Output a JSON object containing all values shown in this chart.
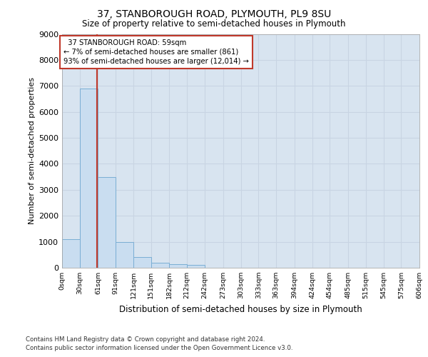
{
  "title": "37, STANBOROUGH ROAD, PLYMOUTH, PL9 8SU",
  "subtitle": "Size of property relative to semi-detached houses in Plymouth",
  "xlabel": "Distribution of semi-detached houses by size in Plymouth",
  "ylabel": "Number of semi-detached properties",
  "property_size": 59,
  "property_label": "37 STANBOROUGH ROAD: 59sqm",
  "pct_smaller": 7,
  "pct_larger": 93,
  "n_smaller": 861,
  "n_larger": 12014,
  "bin_edges": [
    0,
    30,
    61,
    91,
    121,
    151,
    182,
    212,
    242,
    273,
    303,
    333,
    363,
    394,
    424,
    454,
    485,
    515,
    545,
    575,
    606
  ],
  "bar_values": [
    1100,
    6900,
    3500,
    1000,
    400,
    200,
    150,
    100,
    0,
    0,
    0,
    0,
    0,
    0,
    0,
    0,
    0,
    0,
    0,
    0
  ],
  "bar_color": "#c9ddf0",
  "bar_edge_color": "#7aaed4",
  "grid_color": "#c8d4e3",
  "background_color": "#d8e4f0",
  "vline_color": "#c0392b",
  "annotation_box_edge_color": "#c0392b",
  "ylim": [
    0,
    9000
  ],
  "yticks": [
    0,
    1000,
    2000,
    3000,
    4000,
    5000,
    6000,
    7000,
    8000,
    9000
  ],
  "footer_line1": "Contains HM Land Registry data © Crown copyright and database right 2024.",
  "footer_line2": "Contains public sector information licensed under the Open Government Licence v3.0."
}
